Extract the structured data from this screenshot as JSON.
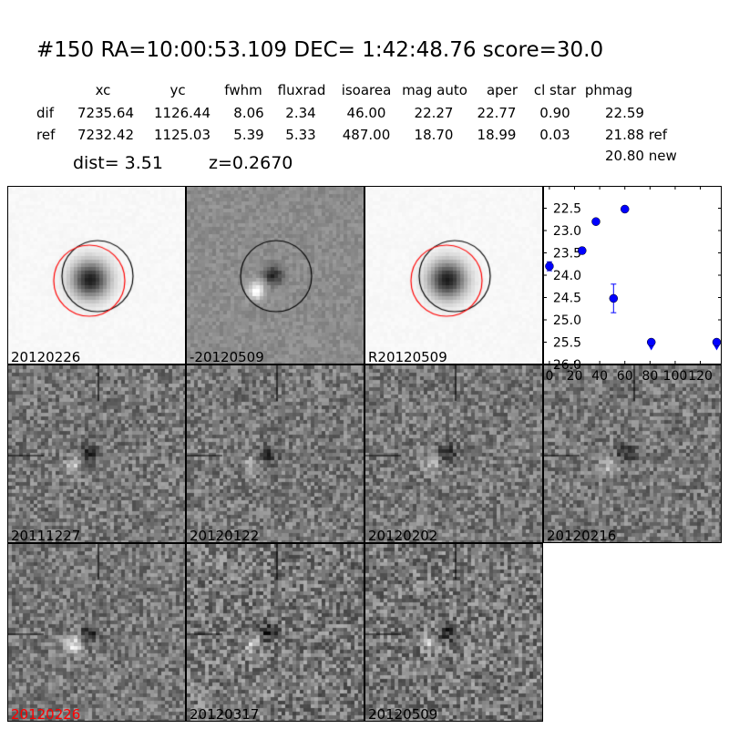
{
  "header": {
    "title": "#150   RA=10:00:53.109 DEC= 1:42:48.76      score=30.0"
  },
  "table": {
    "columns": [
      "xc",
      "yc",
      "fwhm",
      "fluxrad",
      "isoarea",
      "mag auto",
      "aper",
      "cl star",
      "phmag"
    ],
    "rows": [
      {
        "label": "dif",
        "values": [
          "7235.64",
          "1126.44",
          "8.06",
          "2.34",
          "46.00",
          "22.27",
          "22.77",
          "0.90",
          "22.59"
        ]
      },
      {
        "label": "ref",
        "values": [
          "7232.42",
          "1125.03",
          "5.39",
          "5.33",
          "487.00",
          "18.70",
          "18.99",
          "0.03",
          "21.88 ref"
        ]
      }
    ],
    "extra": "20.80 new",
    "dist": "dist=  3.51",
    "z": "z=0.2670"
  },
  "stamps": [
    {
      "label": "20120226",
      "type": "star",
      "label_color": "#000000"
    },
    {
      "label": "-20120509",
      "type": "dipole",
      "label_color": "#000000"
    },
    {
      "label": "R20120509",
      "type": "star",
      "label_color": "#000000"
    },
    {
      "label": "20111227",
      "type": "noise",
      "label_color": "#000000"
    },
    {
      "label": "20120122",
      "type": "noise",
      "label_color": "#000000"
    },
    {
      "label": "20120202",
      "type": "noise",
      "label_color": "#000000"
    },
    {
      "label": "20120216",
      "type": "noise",
      "label_color": "#000000"
    },
    {
      "label": "20120226",
      "type": "noise",
      "label_color": "#ff0000"
    },
    {
      "label": "20120317",
      "type": "noise",
      "label_color": "#000000"
    },
    {
      "label": "20120509",
      "type": "noise",
      "label_color": "#000000"
    }
  ],
  "chart_data": {
    "type": "scatter",
    "xlim": [
      -5,
      137
    ],
    "ylim": [
      26.0,
      22.0
    ],
    "y_inverted": true,
    "xticks": [
      "0",
      "20",
      "40",
      "60",
      "80",
      "100",
      "120"
    ],
    "yticks": [
      "22.5",
      "23.0",
      "23.5",
      "24.0",
      "24.5",
      "25.0",
      "25.5",
      "26.0"
    ],
    "point_color": "#0000ff",
    "points": [
      {
        "x": 0,
        "y": 23.8,
        "err": 0.1
      },
      {
        "x": 26,
        "y": 23.45,
        "err": 0.07
      },
      {
        "x": 37,
        "y": 22.8,
        "err": 0
      },
      {
        "x": 60,
        "y": 22.52,
        "err": 0
      },
      {
        "x": 51,
        "y": 24.52,
        "err": 0.32
      },
      {
        "x": 81,
        "y": 25.5,
        "err": 0,
        "upper_limit": true
      },
      {
        "x": 133,
        "y": 25.5,
        "err": 0,
        "upper_limit": true
      }
    ]
  }
}
